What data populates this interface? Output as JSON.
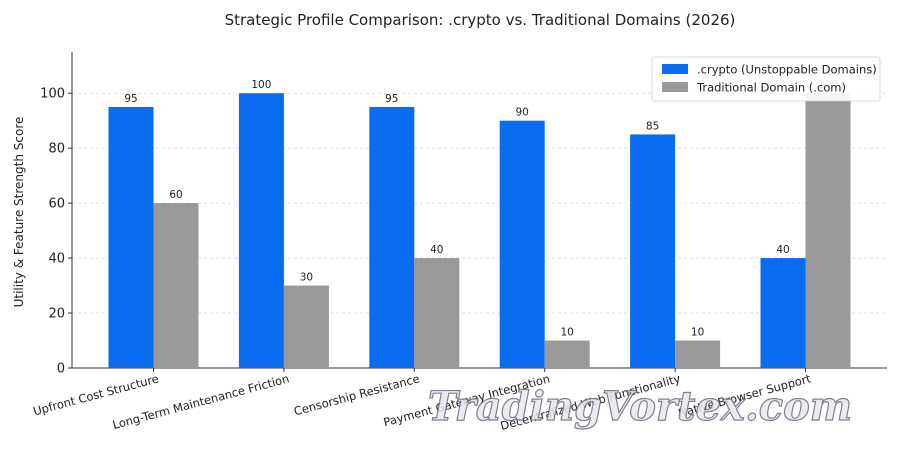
{
  "chart_data": {
    "type": "bar",
    "title": "Strategic Profile Comparison: .crypto vs. Traditional Domains (2026)",
    "xlabel": "",
    "ylabel": "Utility & Feature Strength Score",
    "ylim": [
      0,
      115
    ],
    "yticks": [
      0,
      20,
      40,
      60,
      80,
      100
    ],
    "grid": "horizontal-dashed",
    "legend_position": "top-right",
    "categories": [
      "Upfront Cost Structure",
      "Long-Term Maintenance Friction",
      "Censorship Resistance",
      "Payment Gateway Integration",
      "Decentralized Web Functionality",
      "Native Browser Support"
    ],
    "series": [
      {
        "name": ".crypto (Unstoppable Domains)",
        "color": "#0a6cf0",
        "values": [
          95,
          100,
          95,
          90,
          85,
          40
        ]
      },
      {
        "name": "Traditional Domain (.com)",
        "color": "#999999",
        "values": [
          60,
          30,
          40,
          10,
          10,
          100
        ]
      }
    ]
  },
  "watermark": "TradingVortex.com"
}
